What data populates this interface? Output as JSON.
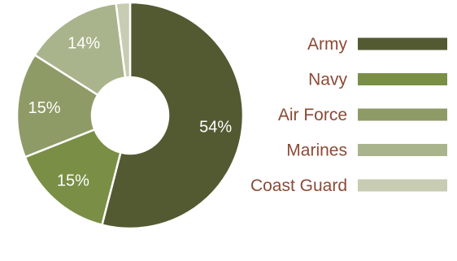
{
  "chart_data": {
    "type": "pie",
    "donut": true,
    "categories": [
      "Army",
      "Navy",
      "Air Force",
      "Marines",
      "Coast Guard"
    ],
    "values": [
      54,
      15,
      15,
      14,
      2
    ],
    "data_labels": [
      "54%",
      "15%",
      "15%",
      "14%",
      "2%"
    ],
    "colors": [
      "#535A32",
      "#7A8F45",
      "#8E9B67",
      "#A9B48C",
      "#C7CCB2"
    ],
    "label_colors": {
      "inside": "#ffffff",
      "outside": "#8B4A36",
      "legend": "#8B4A36"
    },
    "legend_position": "right",
    "grid": false
  }
}
